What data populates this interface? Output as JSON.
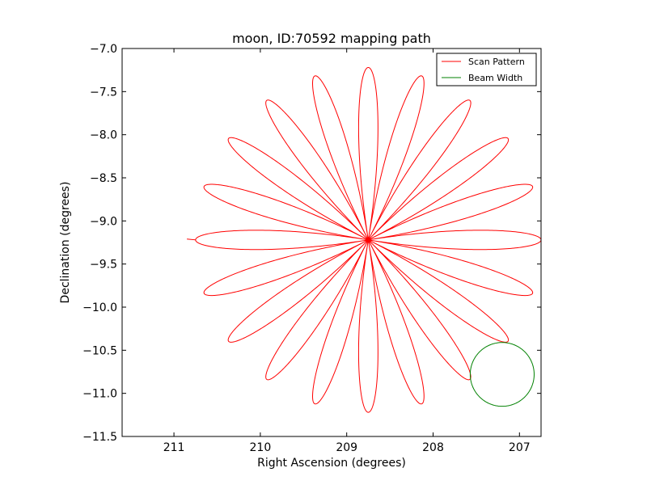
{
  "chart_data": {
    "type": "line",
    "title": "moon, ID:70592 mapping path",
    "xlabel": "Right Ascension (degrees)",
    "ylabel": "Declination (degrees)",
    "xlim": [
      211.6,
      206.75
    ],
    "ylim": [
      -11.5,
      -7.0
    ],
    "x_ticks": [
      211,
      210,
      209,
      208,
      207
    ],
    "x_tick_labels": [
      "211",
      "210",
      "209",
      "208",
      "207"
    ],
    "y_ticks": [
      -7.0,
      -7.5,
      -8.0,
      -8.5,
      -9.0,
      -9.5,
      -10.0,
      -10.5,
      -11.0,
      -11.5
    ],
    "y_tick_labels": [
      "−7.0",
      "−7.5",
      "−8.0",
      "−8.5",
      "−9.0",
      "−9.5",
      "−10.0",
      "−10.5",
      "−11.0",
      "−11.5"
    ],
    "grid": false,
    "legend_position": "top-right",
    "series": [
      {
        "name": "Scan Pattern",
        "color": "#ff0000",
        "shape": "rose",
        "center": [
          208.75,
          -9.22
        ],
        "petals": 20,
        "radius_deg": 2.0,
        "start_angle_deg": 180,
        "lead_in": [
          [
            210.85,
            -9.21
          ],
          [
            210.75,
            -9.22
          ]
        ]
      },
      {
        "name": "Beam Width",
        "color": "#008000",
        "shape": "circle",
        "center": [
          207.2,
          -10.78
        ],
        "radius_deg": 0.37
      }
    ]
  }
}
